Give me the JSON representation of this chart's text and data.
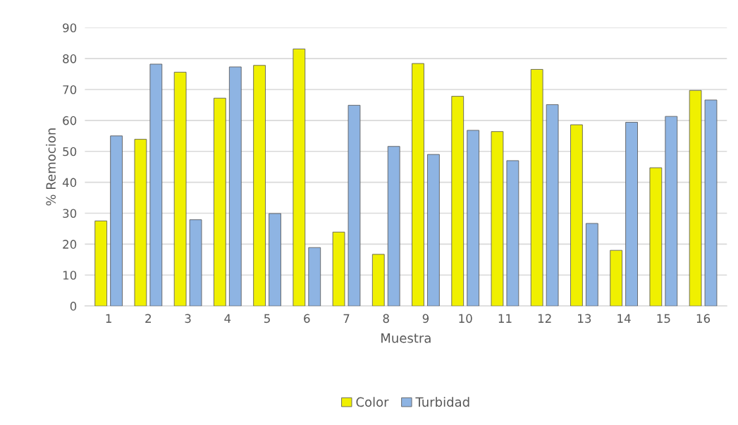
{
  "chart_data": {
    "type": "bar",
    "xlabel": "Muestra",
    "ylabel": "% Remocion",
    "categories": [
      "1",
      "2",
      "3",
      "4",
      "5",
      "6",
      "7",
      "8",
      "9",
      "10",
      "11",
      "12",
      "13",
      "14",
      "15",
      "16"
    ],
    "series": [
      {
        "name": "Color",
        "color": "#f0f000",
        "values": [
          27.5,
          53.9,
          75.6,
          67.2,
          77.8,
          83.1,
          23.9,
          16.7,
          78.4,
          67.8,
          56.4,
          76.5,
          58.6,
          18.0,
          44.7,
          69.7
        ]
      },
      {
        "name": "Turbidad",
        "color": "#8eb4e3",
        "values": [
          55.0,
          78.2,
          27.9,
          77.3,
          29.9,
          18.9,
          64.9,
          51.6,
          49.0,
          56.8,
          47.0,
          65.1,
          26.7,
          59.4,
          61.3,
          66.6
        ]
      }
    ],
    "ylim": [
      0,
      90
    ],
    "yticks": [
      0,
      10,
      20,
      30,
      40,
      50,
      60,
      70,
      80,
      90
    ],
    "grid": "y",
    "legend": "bottom"
  }
}
